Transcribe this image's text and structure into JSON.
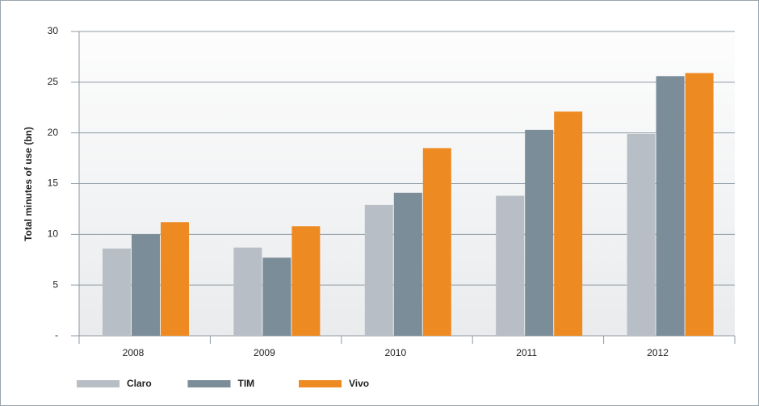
{
  "chart_data": {
    "type": "bar",
    "y_label": "Total minutes of use (bn)",
    "categories": [
      "2008",
      "2009",
      "2010",
      "2011",
      "2012"
    ],
    "series": [
      {
        "name": "Claro",
        "color": "#b8bec5",
        "values": [
          8.6,
          8.7,
          12.9,
          13.8,
          19.9
        ]
      },
      {
        "name": "TIM",
        "color": "#7b8d99",
        "values": [
          10.0,
          7.7,
          14.1,
          20.3,
          25.6
        ]
      },
      {
        "name": "Vivo",
        "color": "#ee8a22",
        "values": [
          11.2,
          10.8,
          18.5,
          22.1,
          25.9
        ]
      }
    ],
    "ylim": [
      0,
      30
    ],
    "yticks": [
      {
        "value": 0,
        "label": "-"
      },
      5,
      10,
      15,
      20,
      25,
      30
    ],
    "grid": true,
    "legend": "bottom"
  }
}
